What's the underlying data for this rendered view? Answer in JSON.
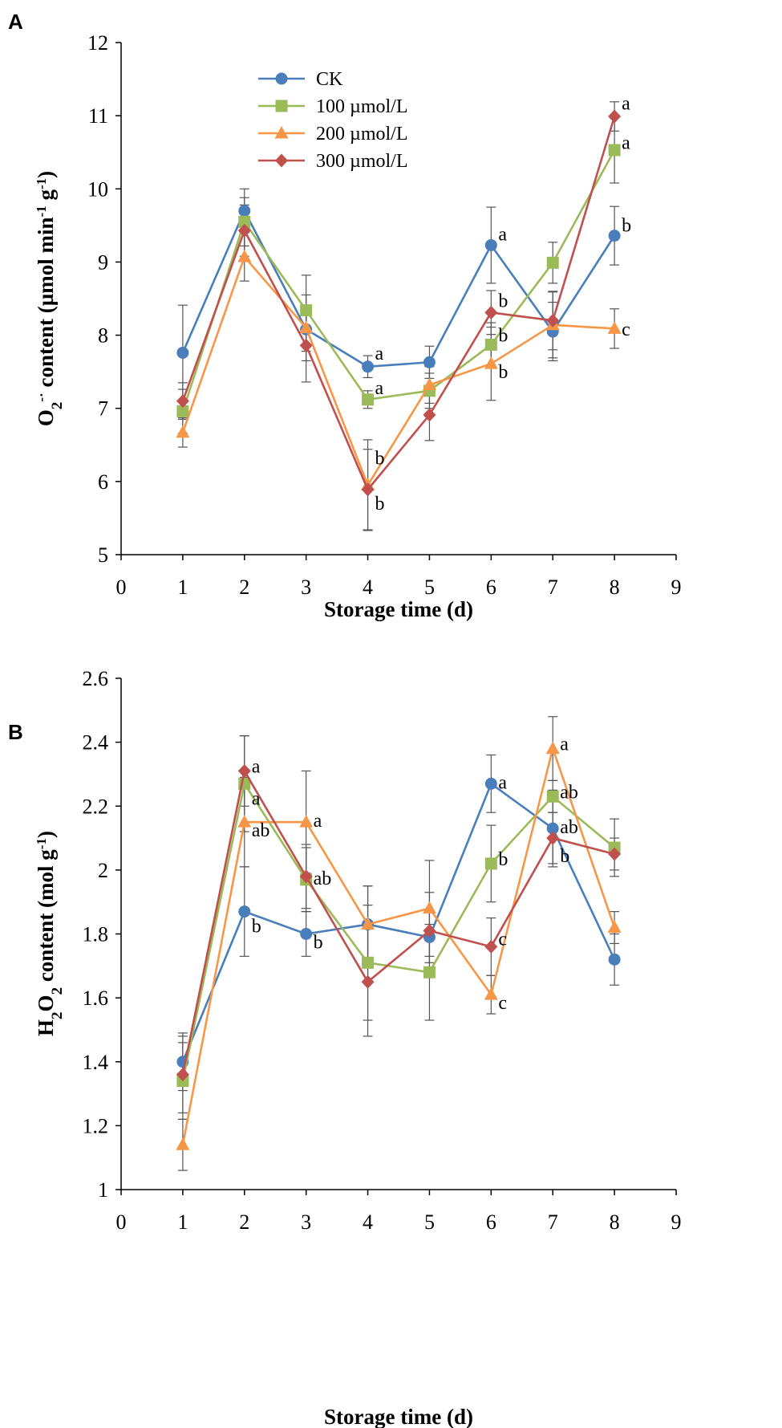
{
  "colors": {
    "CK": "#4a7ebb",
    "100": "#9bbb59",
    "200": "#f79646",
    "300": "#c0504d"
  },
  "legend": [
    "CK",
    "100 µmol/L",
    "200 µmol/L",
    "300 µmol/L"
  ],
  "chart_data": [
    {
      "panel": "A",
      "type": "line",
      "xlabel": "Storage time (d)",
      "ylabel_html": "O<tspan baseline-shift='sub' font-size='19'>2</tspan><tspan baseline-shift='super' font-size='17'>-·</tspan> content (µmol min<tspan baseline-shift='super' font-size='17'>-1</tspan> g<tspan baseline-shift='super' font-size='17'>-1</tspan>)",
      "xlim": [
        0,
        9
      ],
      "ylim": [
        5,
        12
      ],
      "xticks": [
        0,
        1,
        2,
        3,
        4,
        5,
        6,
        7,
        8,
        9
      ],
      "yticks": [
        5,
        6,
        7,
        8,
        9,
        10,
        11,
        12
      ],
      "x": [
        1,
        2,
        3,
        4,
        5,
        6,
        7,
        8
      ],
      "series": [
        {
          "key": "CK",
          "name": "CK",
          "marker": "circle",
          "values": [
            7.76,
            9.7,
            8.08,
            7.57,
            7.63,
            9.23,
            8.05,
            9.36
          ],
          "err": [
            0.65,
            0.3,
            0.3,
            0.15,
            0.22,
            0.52,
            0.4,
            0.4
          ]
        },
        {
          "key": "100",
          "name": "100 µmol/L",
          "marker": "square",
          "values": [
            6.96,
            9.55,
            8.34,
            7.12,
            7.24,
            7.87,
            8.99,
            10.53
          ],
          "err": [
            0.3,
            0.33,
            0.48,
            0.12,
            0.24,
            0.3,
            0.28,
            0.45
          ]
        },
        {
          "key": "200",
          "name": "200 µmol/L",
          "marker": "triangle",
          "values": [
            6.67,
            9.07,
            8.1,
            5.95,
            7.32,
            7.61,
            8.14,
            8.09
          ],
          "err": [
            0.2,
            0.33,
            0.45,
            0.62,
            0.25,
            0.5,
            0.45,
            0.27
          ]
        },
        {
          "key": "300",
          "name": "300 µmol/L",
          "marker": "diamond",
          "values": [
            7.1,
            9.43,
            7.86,
            5.89,
            6.91,
            8.31,
            8.2,
            10.99
          ],
          "err": [
            0.25,
            0.35,
            0.5,
            0.55,
            0.35,
            0.3,
            0.4,
            0.2
          ]
        }
      ],
      "annotations": [
        {
          "x": 4,
          "y": 7.73,
          "text": "a"
        },
        {
          "x": 4,
          "y": 7.26,
          "text": "a"
        },
        {
          "x": 4,
          "y": 6.3,
          "text": "b"
        },
        {
          "x": 4,
          "y": 5.68,
          "text": "b"
        },
        {
          "x": 6,
          "y": 9.36,
          "text": "a"
        },
        {
          "x": 6,
          "y": 8.45,
          "text": "b"
        },
        {
          "x": 6,
          "y": 7.98,
          "text": "b"
        },
        {
          "x": 6,
          "y": 7.48,
          "text": "b"
        },
        {
          "x": 8,
          "y": 11.15,
          "text": "a"
        },
        {
          "x": 8,
          "y": 10.61,
          "text": "a"
        },
        {
          "x": 8,
          "y": 9.48,
          "text": "b"
        },
        {
          "x": 8,
          "y": 8.06,
          "text": "c"
        }
      ]
    },
    {
      "panel": "B",
      "type": "line",
      "xlabel": "Storage time (d)",
      "ylabel_html": "H<tspan baseline-shift='sub' font-size='19'>2</tspan>O<tspan baseline-shift='sub' font-size='19'>2</tspan> content (mol g<tspan baseline-shift='super' font-size='17'>-1</tspan>)",
      "xlim": [
        0,
        9
      ],
      "ylim": [
        1,
        2.6
      ],
      "xticks": [
        0,
        1,
        2,
        3,
        4,
        5,
        6,
        7,
        8,
        9
      ],
      "yticks": [
        1,
        1.2,
        1.4,
        1.6,
        1.8,
        2,
        2.2,
        2.4,
        2.6
      ],
      "x": [
        1,
        2,
        3,
        4,
        5,
        6,
        7,
        8
      ],
      "series": [
        {
          "key": "CK",
          "name": "CK",
          "marker": "circle",
          "values": [
            1.4,
            1.87,
            1.8,
            1.83,
            1.79,
            2.27,
            2.13,
            1.72
          ],
          "err": [
            0.09,
            0.14,
            0.07,
            0.12,
            0.08,
            0.09,
            0.12,
            0.08
          ]
        },
        {
          "key": "100",
          "name": "100 µmol/L",
          "marker": "square",
          "values": [
            1.34,
            2.27,
            1.97,
            1.71,
            1.68,
            2.02,
            2.23,
            2.07
          ],
          "err": [
            0.12,
            0.15,
            0.1,
            0.18,
            0.15,
            0.12,
            0.05,
            0.09
          ]
        },
        {
          "key": "200",
          "name": "200 µmol/L",
          "marker": "triangle",
          "values": [
            1.14,
            2.15,
            2.15,
            1.83,
            1.88,
            1.61,
            2.38,
            1.82
          ],
          "err": [
            0.08,
            0.14,
            0.16,
            0.12,
            0.15,
            0.06,
            0.1,
            0.05
          ]
        },
        {
          "key": "300",
          "name": "300 µmol/L",
          "marker": "diamond",
          "values": [
            1.36,
            2.31,
            1.98,
            1.65,
            1.81,
            1.76,
            2.1,
            2.05
          ],
          "err": [
            0.12,
            0.11,
            0.1,
            0.17,
            0.12,
            0.09,
            0.08,
            0.05
          ]
        }
      ],
      "annotations": [
        {
          "x": 2,
          "y": 2.32,
          "text": "a"
        },
        {
          "x": 2,
          "y": 2.22,
          "text": "a"
        },
        {
          "x": 2,
          "y": 2.12,
          "text": "ab"
        },
        {
          "x": 2,
          "y": 1.82,
          "text": "b"
        },
        {
          "x": 3,
          "y": 2.15,
          "text": "a"
        },
        {
          "x": 3,
          "y": 1.97,
          "text": "ab"
        },
        {
          "x": 3,
          "y": 1.77,
          "text": "b"
        },
        {
          "x": 6,
          "y": 2.27,
          "text": "a"
        },
        {
          "x": 6,
          "y": 2.03,
          "text": "b"
        },
        {
          "x": 6,
          "y": 1.78,
          "text": "c"
        },
        {
          "x": 6,
          "y": 1.58,
          "text": "c"
        },
        {
          "x": 7,
          "y": 2.39,
          "text": "a"
        },
        {
          "x": 7,
          "y": 2.24,
          "text": "ab"
        },
        {
          "x": 7,
          "y": 2.13,
          "text": "ab"
        },
        {
          "x": 7,
          "y": 2.04,
          "text": "b"
        }
      ]
    }
  ]
}
